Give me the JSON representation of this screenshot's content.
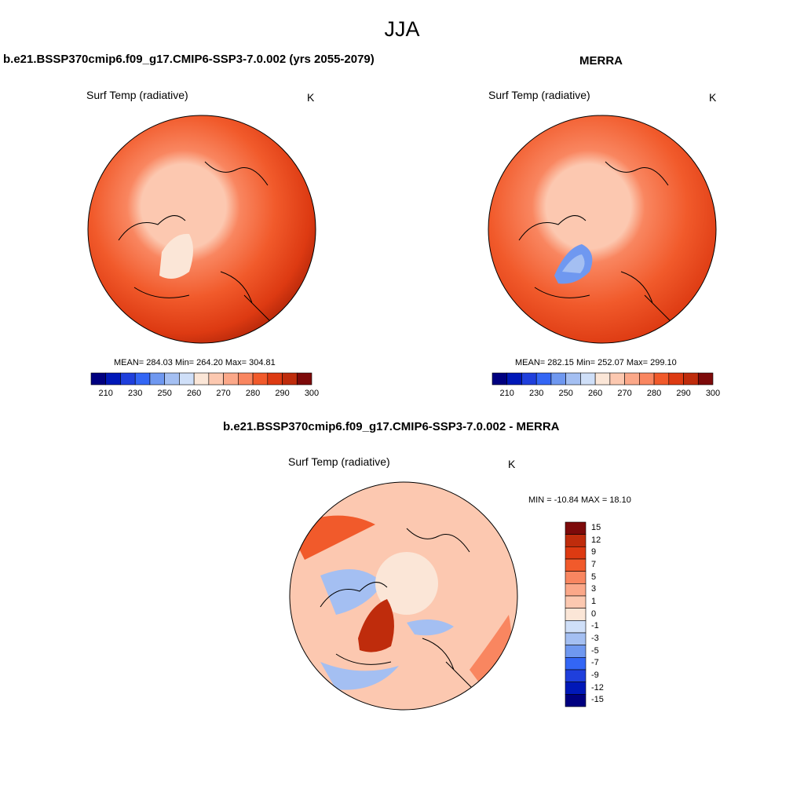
{
  "season": "JJA",
  "palette": {
    "cb": [
      "#000080",
      "#0018b8",
      "#1f3fdc",
      "#3366f5",
      "#6f98f0",
      "#a4bff2",
      "#cfdff8",
      "#fbe6d7",
      "#fcc8b0",
      "#fba889",
      "#f98660",
      "#f15a2b",
      "#dd3a12",
      "#bf2c0c",
      "#7d0a0a"
    ],
    "diff": [
      "#000080",
      "#0018b8",
      "#1f3fdc",
      "#3366f5",
      "#6f98f0",
      "#a4bff2",
      "#cfdff8",
      "#fbe6d7",
      "#fcc8b0",
      "#fba889",
      "#f98660",
      "#f15a2b",
      "#dd3a12",
      "#bf2c0c",
      "#7d0a0a"
    ]
  },
  "chart_data": [
    {
      "type": "heatmap",
      "projection": "north-polar-stereographic",
      "title": "b.e21.BSSP370cmip6.f09_g17.CMIP6-SSP3-7.0.002 (yrs 2055-2079)",
      "variable": "Surf Temp (radiative)",
      "units": "K",
      "stats_label": "MEAN= 284.03  Min= 264.20  Max= 304.81",
      "mean": 284.03,
      "min": 264.2,
      "max": 304.81,
      "colorbar_ticks": [
        "210",
        "230",
        "250",
        "260",
        "270",
        "280",
        "290",
        "300"
      ],
      "legend_placement": "bottom"
    },
    {
      "type": "heatmap",
      "projection": "north-polar-stereographic",
      "title": "MERRA",
      "variable": "Surf Temp (radiative)",
      "units": "K",
      "stats_label": "MEAN= 282.15  Min= 252.07  Max= 299.10",
      "mean": 282.15,
      "min": 252.07,
      "max": 299.1,
      "colorbar_ticks": [
        "210",
        "230",
        "250",
        "260",
        "270",
        "280",
        "290",
        "300"
      ],
      "legend_placement": "bottom"
    },
    {
      "type": "heatmap",
      "projection": "north-polar-stereographic",
      "title": "b.e21.BSSP370cmip6.f09_g17.CMIP6-SSP3-7.0.002 - MERRA",
      "variable": "Surf Temp (radiative)",
      "units": "K",
      "stats_label": "MIN = -10.84 MAX =  18.10",
      "min": -10.84,
      "max": 18.1,
      "colorbar_levels": [
        "15",
        "12",
        "9",
        "7",
        "5",
        "3",
        "1",
        "0",
        "-1",
        "-3",
        "-5",
        "-7",
        "-9",
        "-12",
        "-15"
      ],
      "legend_placement": "right"
    }
  ]
}
